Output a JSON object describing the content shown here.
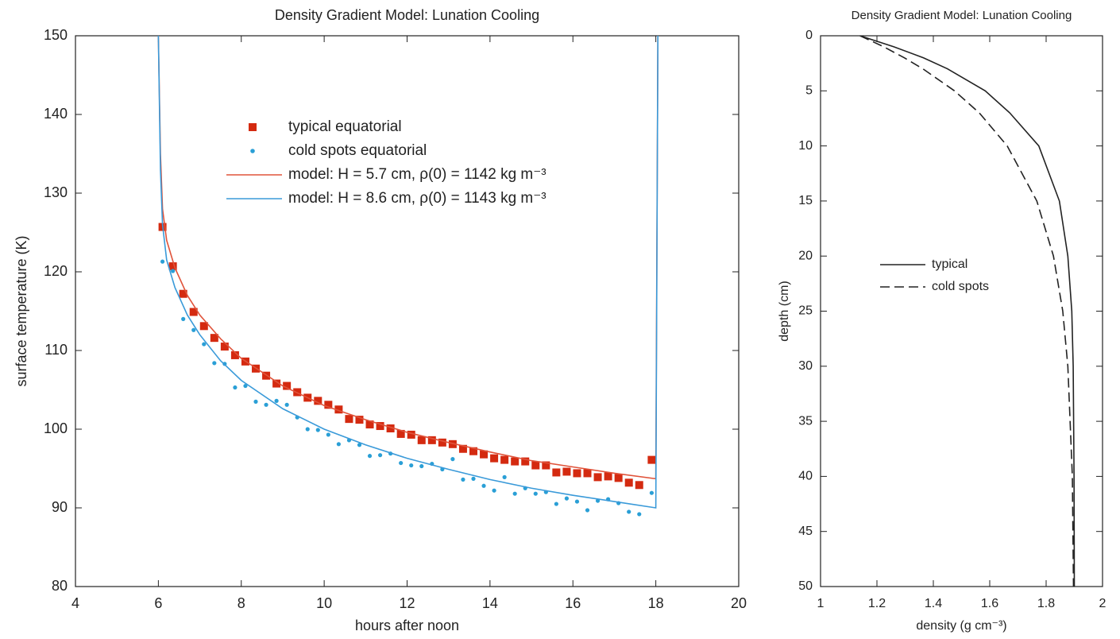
{
  "chart_data": [
    {
      "type": "scatter",
      "title": "Density Gradient Model: Lunation Cooling",
      "x_label": "hours after noon",
      "y_label": "surface temperature (K)",
      "xlim": [
        4,
        20
      ],
      "xticks": [
        4,
        6,
        8,
        10,
        12,
        14,
        16,
        18,
        20
      ],
      "ylim": [
        80,
        150
      ],
      "yticks": [
        80,
        90,
        100,
        110,
        120,
        130,
        140,
        150
      ],
      "grid": false,
      "series": [
        {
          "name": "typical equatorial",
          "color": "#d42a10",
          "mode": "markers",
          "marker": "square",
          "x": [
            6.1,
            6.35,
            6.6,
            6.85,
            7.1,
            7.35,
            7.6,
            7.85,
            8.1,
            8.35,
            8.6,
            8.85,
            9.1,
            9.35,
            9.6,
            9.85,
            10.1,
            10.35,
            10.6,
            10.85,
            11.1,
            11.35,
            11.6,
            11.85,
            12.1,
            12.35,
            12.6,
            12.85,
            13.1,
            13.35,
            13.6,
            13.85,
            14.1,
            14.35,
            14.6,
            14.85,
            15.1,
            15.35,
            15.6,
            15.85,
            16.1,
            16.35,
            16.6,
            16.85,
            17.1,
            17.35,
            17.6,
            17.9
          ],
          "values": [
            125.7,
            120.7,
            117.2,
            114.9,
            113.1,
            111.6,
            110.5,
            109.4,
            108.6,
            107.7,
            106.8,
            105.8,
            105.5,
            104.7,
            104.0,
            103.6,
            103.1,
            102.5,
            101.3,
            101.2,
            100.6,
            100.4,
            100.1,
            99.4,
            99.3,
            98.6,
            98.6,
            98.3,
            98.1,
            97.5,
            97.2,
            96.8,
            96.3,
            96.1,
            95.9,
            95.9,
            95.4,
            95.4,
            94.5,
            94.6,
            94.4,
            94.4,
            93.9,
            94.0,
            93.8,
            93.2,
            92.9,
            96.1
          ]
        },
        {
          "name": "cold spots equatorial",
          "color": "#2a9fd6",
          "mode": "markers",
          "marker": "circle",
          "x": [
            6.1,
            6.35,
            6.6,
            6.85,
            7.1,
            7.35,
            7.6,
            7.85,
            8.1,
            8.35,
            8.6,
            8.85,
            9.1,
            9.35,
            9.6,
            9.85,
            10.1,
            10.35,
            10.6,
            10.85,
            11.1,
            11.35,
            11.6,
            11.85,
            12.1,
            12.35,
            12.6,
            12.85,
            13.1,
            13.35,
            13.6,
            13.85,
            14.1,
            14.35,
            14.6,
            14.85,
            15.1,
            15.35,
            15.6,
            15.85,
            16.1,
            16.35,
            16.6,
            16.85,
            17.1,
            17.35,
            17.6,
            17.9
          ],
          "values": [
            121.3,
            120.1,
            114.0,
            112.6,
            110.8,
            108.4,
            108.3,
            105.3,
            105.5,
            103.5,
            103.1,
            103.6,
            103.1,
            101.5,
            100.0,
            99.9,
            99.3,
            98.1,
            98.6,
            98.0,
            96.6,
            96.7,
            96.9,
            95.7,
            95.4,
            95.3,
            95.6,
            94.9,
            96.2,
            93.6,
            93.7,
            92.8,
            92.2,
            93.9,
            91.8,
            92.5,
            91.8,
            92.0,
            90.5,
            91.2,
            90.8,
            89.7,
            90.9,
            91.1,
            90.6,
            89.5,
            89.2,
            91.9
          ]
        },
        {
          "name": "model: H = 5.7 cm, ρ(0) = 1142 kg m⁻³",
          "color": "#e0533a",
          "mode": "lines",
          "x": [
            6.0,
            6.05,
            6.1,
            6.2,
            6.4,
            6.7,
            7,
            7.5,
            8,
            9,
            10,
            11,
            12,
            13,
            14,
            15,
            16,
            17,
            18,
            18.05
          ],
          "values": [
            150,
            135,
            128,
            124,
            120.5,
            117,
            114.5,
            111.5,
            109,
            105.5,
            103,
            101.2,
            99.6,
            98.3,
            97.1,
            96,
            95.2,
            94.4,
            93.7,
            150
          ]
        },
        {
          "name": "model: H = 8.6 cm, ρ(0) = 1143 kg m⁻³",
          "color": "#3a9ad9",
          "mode": "lines",
          "x": [
            6.0,
            6.05,
            6.1,
            6.2,
            6.4,
            6.7,
            7,
            7.5,
            8,
            9,
            10,
            11,
            12,
            13,
            14,
            15,
            16,
            17,
            18,
            18.05
          ],
          "values": [
            150,
            133,
            126,
            121.5,
            118,
            114.5,
            112,
            108.7,
            106.2,
            102.6,
            100,
            98,
            96.3,
            94.9,
            93.6,
            92.5,
            91.6,
            90.8,
            90,
            150
          ]
        }
      ]
    },
    {
      "type": "line",
      "title": "Density Gradient Model: Lunation Cooling",
      "x_label": "density (g cm⁻³)",
      "y_label": "depth (cm)",
      "xlim": [
        1,
        2
      ],
      "xticks": [
        1,
        1.2,
        1.4,
        1.6,
        1.8,
        2
      ],
      "ylim": [
        50,
        0
      ],
      "yticks": [
        0,
        5,
        10,
        15,
        20,
        25,
        30,
        35,
        40,
        45,
        50
      ],
      "grid": false,
      "y": [
        0,
        1,
        2,
        3,
        5,
        7,
        10,
        15,
        20,
        25,
        30,
        40,
        50
      ],
      "series": [
        {
          "name": "typical",
          "color": "#222222",
          "dash": false,
          "values": [
            1.14,
            1.26,
            1.365,
            1.45,
            1.584,
            1.671,
            1.774,
            1.847,
            1.877,
            1.891,
            1.896,
            1.899,
            1.9
          ]
        },
        {
          "name": "cold spots",
          "color": "#222222",
          "dash": true,
          "values": [
            1.14,
            1.224,
            1.297,
            1.363,
            1.475,
            1.563,
            1.662,
            1.767,
            1.826,
            1.859,
            1.877,
            1.893,
            1.897
          ]
        }
      ]
    }
  ]
}
